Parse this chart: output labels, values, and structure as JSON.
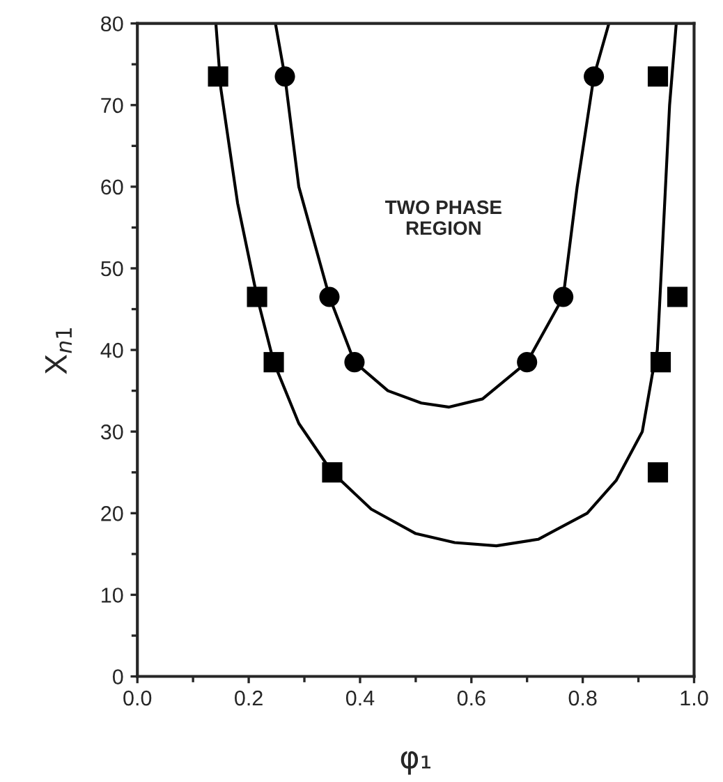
{
  "chart_data": {
    "type": "scatter",
    "xlabel": "φ₁",
    "ylabel": "X$_{n1}$",
    "xlim": [
      0.0,
      1.0
    ],
    "ylim": [
      0,
      80
    ],
    "xticks": [
      {
        "value": 0.0,
        "label": "0.0"
      },
      0.2,
      0.4,
      0.6,
      0.8,
      {
        "value": 1.0,
        "label": "1.0"
      }
    ],
    "yticks": [
      0,
      10,
      20,
      30,
      40,
      50,
      60,
      70,
      80
    ],
    "grid": false,
    "annotations": [
      "TWO PHASE\nREGION"
    ],
    "series": [
      {
        "marker": "square",
        "color": "#000000",
        "x": [
          0.145,
          0.215,
          0.245,
          0.35,
          0.935,
          0.97,
          0.94,
          0.935
        ],
        "values": [
          73.5,
          46.5,
          38.5,
          25,
          73.5,
          46.5,
          38.5,
          25
        ]
      },
      {
        "marker": "circle",
        "color": "#000000",
        "x": [
          0.265,
          0.345,
          0.39,
          0.7,
          0.765,
          0.82
        ],
        "values": [
          73.5,
          46.5,
          38.5,
          38.5,
          46.5,
          73.5
        ]
      },
      {
        "type": "line",
        "line_style": "solid",
        "color": "#000000",
        "x": [
          0.141,
          0.15,
          0.18,
          0.215,
          0.245,
          0.29,
          0.35,
          0.42,
          0.5,
          0.57,
          0.645,
          0.72,
          0.808,
          0.86,
          0.907,
          0.925,
          0.934,
          0.945,
          0.956,
          0.968
        ],
        "values": [
          80,
          72,
          58,
          46.5,
          38.5,
          31,
          25,
          20.5,
          17.5,
          16.4,
          16,
          16.8,
          20,
          24,
          30,
          37,
          40,
          55,
          70,
          80
        ]
      },
      {
        "type": "line",
        "line_style": "solid",
        "color": "#000000",
        "x": [
          0.248,
          0.265,
          0.29,
          0.345,
          0.39,
          0.45,
          0.51,
          0.56,
          0.62,
          0.7,
          0.765,
          0.79,
          0.82,
          0.847
        ],
        "values": [
          80,
          73.5,
          60,
          46.5,
          38.5,
          35,
          33.5,
          33,
          34,
          38.5,
          46.5,
          60,
          73.5,
          80
        ]
      }
    ]
  }
}
